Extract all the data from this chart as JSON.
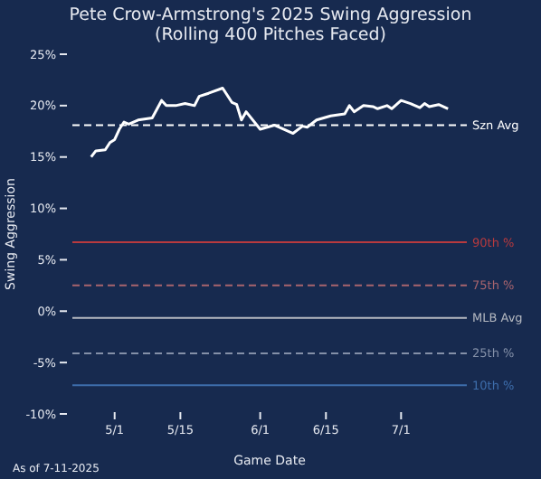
{
  "chart_data": {
    "type": "line",
    "title": "Pete Crow-Armstrong's 2025 Swing Aggression",
    "subtitle": "(Rolling 400 Pitches Faced)",
    "xlabel": "Game Date",
    "ylabel": "Swing Aggression",
    "x": [
      "2025-04-26",
      "2025-04-27",
      "2025-04-29",
      "2025-04-30",
      "2025-05-01",
      "2025-05-02",
      "2025-05-03",
      "2025-05-04",
      "2025-05-06",
      "2025-05-09",
      "2025-05-11",
      "2025-05-12",
      "2025-05-14",
      "2025-05-16",
      "2025-05-18",
      "2025-05-19",
      "2025-05-21",
      "2025-05-24",
      "2025-05-26",
      "2025-05-27",
      "2025-05-28",
      "2025-05-29",
      "2025-06-01",
      "2025-06-04",
      "2025-06-08",
      "2025-06-10",
      "2025-06-11",
      "2025-06-13",
      "2025-06-16",
      "2025-06-19",
      "2025-06-20",
      "2025-06-21",
      "2025-06-23",
      "2025-06-25",
      "2025-06-26",
      "2025-06-28",
      "2025-06-29",
      "2025-07-01",
      "2025-07-03",
      "2025-07-05",
      "2025-07-06",
      "2025-07-07",
      "2025-07-09",
      "2025-07-11"
    ],
    "series": [
      {
        "color": "#ffffff",
        "values": [
          15.0,
          15.6,
          15.7,
          16.4,
          16.7,
          17.7,
          18.4,
          18.2,
          18.6,
          18.8,
          20.5,
          20.0,
          20.0,
          20.2,
          20.0,
          20.9,
          21.2,
          21.7,
          20.3,
          20.1,
          18.6,
          19.4,
          17.7,
          18.1,
          17.3,
          18.0,
          17.9,
          18.6,
          19.0,
          19.2,
          20.0,
          19.4,
          20.0,
          19.9,
          19.7,
          20.0,
          19.7,
          20.5,
          20.2,
          19.8,
          20.2,
          19.9,
          20.1,
          19.7
        ]
      }
    ],
    "xlim": [
      "2025-04-22",
      "2025-07-15"
    ],
    "xticks": [
      {
        "value": "2025-05-01",
        "label": "5/1"
      },
      {
        "value": "2025-05-15",
        "label": "5/15"
      },
      {
        "value": "2025-06-01",
        "label": "6/1"
      },
      {
        "value": "2025-06-15",
        "label": "6/15"
      },
      {
        "value": "2025-07-01",
        "label": "7/1"
      }
    ],
    "ylim": [
      -10,
      25
    ],
    "yticks": [
      {
        "value": -10,
        "label": "-10%"
      },
      {
        "value": -5,
        "label": "-5%"
      },
      {
        "value": 0,
        "label": "0%"
      },
      {
        "value": 5,
        "label": "5%"
      },
      {
        "value": 10,
        "label": "10%"
      },
      {
        "value": 15,
        "label": "15%"
      },
      {
        "value": 20,
        "label": "20%"
      },
      {
        "value": 25,
        "label": "25%"
      }
    ],
    "ref_lines": [
      {
        "axis": "y",
        "value": 18.1,
        "label": "Szn Avg",
        "color": "#ffffff",
        "line_style": "dashed"
      },
      {
        "axis": "y",
        "value": 6.7,
        "label": "90th %",
        "color": "#b83a3e",
        "line_style": "solid"
      },
      {
        "axis": "y",
        "value": 2.5,
        "label": "75th %",
        "color": "#a8646e",
        "line_style": "dashed"
      },
      {
        "axis": "y",
        "value": -0.65,
        "label": "MLB Avg",
        "color": "#b4b8c0",
        "line_style": "solid"
      },
      {
        "axis": "y",
        "value": -4.1,
        "label": "25th %",
        "color": "#8490a8",
        "line_style": "dashed"
      },
      {
        "axis": "y",
        "value": -7.2,
        "label": "10th %",
        "color": "#3e6eac",
        "line_style": "solid"
      }
    ],
    "annotations": [
      "As of 7-11-2025"
    ],
    "grid": false,
    "marker": "none",
    "line_style": "solid"
  }
}
